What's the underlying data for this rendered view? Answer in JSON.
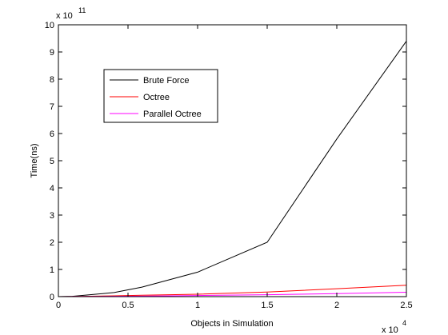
{
  "chart_data": {
    "type": "line",
    "title": "",
    "xlabel": "Objects in Simulation",
    "ylabel": "Time(ns)",
    "x_multiplier_label": {
      "base": "x 10",
      "exponent": "4"
    },
    "y_multiplier_label": {
      "base": "x 10",
      "exponent": "11"
    },
    "xlim": [
      0,
      2.5
    ],
    "ylim": [
      0,
      10
    ],
    "x_ticks": [
      0,
      0.5,
      1,
      1.5,
      2,
      2.5
    ],
    "x_tick_labels": [
      "0",
      "0.5",
      "1",
      "1.5",
      "2",
      "2.5"
    ],
    "y_ticks": [
      0,
      1,
      2,
      3,
      4,
      5,
      6,
      7,
      8,
      9,
      10
    ],
    "y_tick_labels": [
      "0",
      "1",
      "2",
      "3",
      "4",
      "5",
      "6",
      "7",
      "8",
      "9",
      "10"
    ],
    "grid": false,
    "legend_position": "upper-left",
    "series": [
      {
        "name": "Brute Force",
        "color": "#000000",
        "x": [
          0,
          0.1,
          0.4,
          0.6,
          1.0,
          1.5,
          2.0,
          2.5
        ],
        "y": [
          0.0,
          0.01,
          0.15,
          0.35,
          0.9,
          2.0,
          5.8,
          9.4
        ]
      },
      {
        "name": "Octree",
        "color": "#ff0000",
        "x": [
          0,
          0.1,
          0.4,
          0.6,
          1.0,
          1.5,
          2.0,
          2.5
        ],
        "y": [
          0.0,
          0.005,
          0.03,
          0.05,
          0.09,
          0.17,
          0.29,
          0.42
        ]
      },
      {
        "name": "Parallel Octree",
        "color": "#ff00ff",
        "x": [
          0,
          0.1,
          0.4,
          0.6,
          1.0,
          1.5,
          2.0,
          2.5
        ],
        "y": [
          0.0,
          0.002,
          0.01,
          0.02,
          0.04,
          0.07,
          0.11,
          0.16
        ]
      }
    ]
  }
}
